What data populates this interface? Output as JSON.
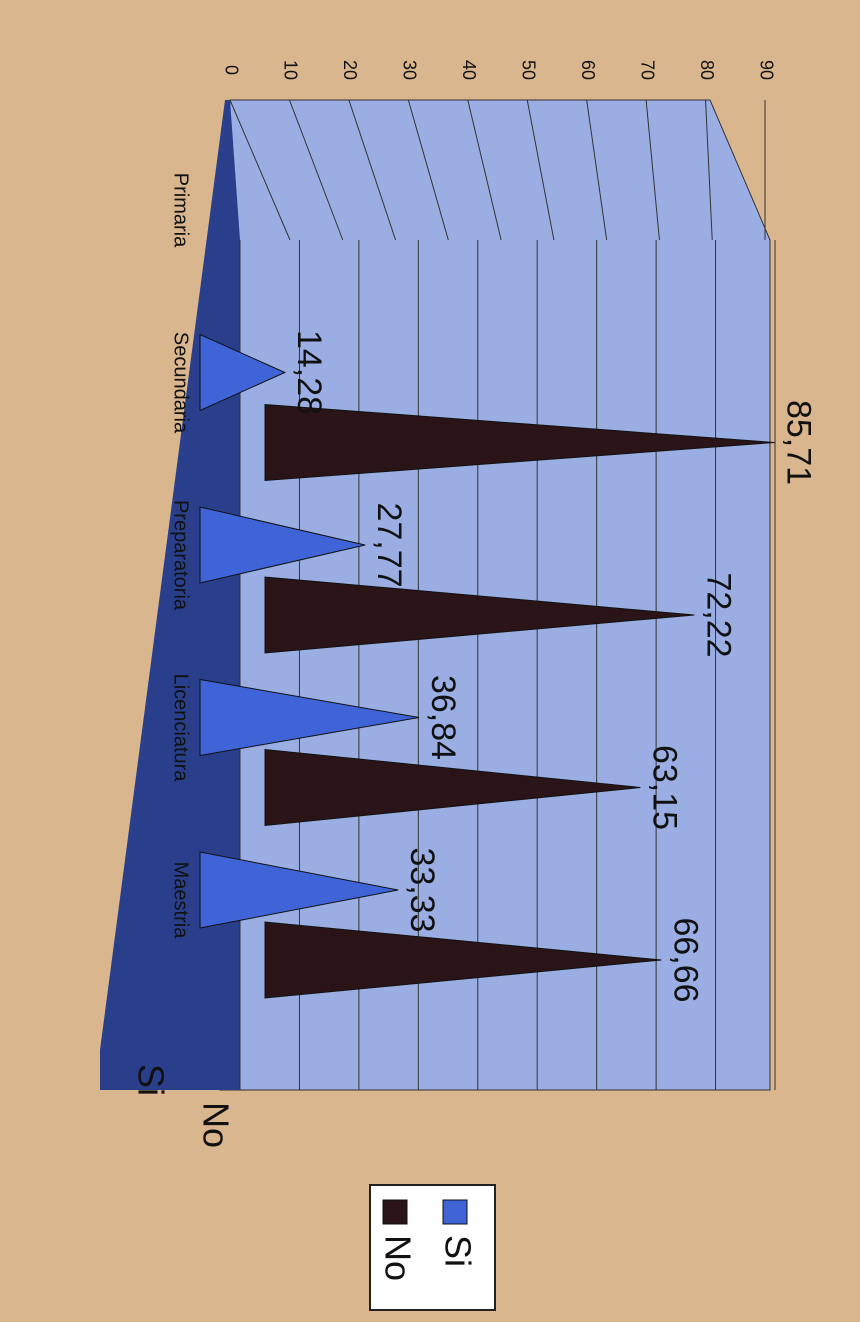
{
  "chart_data": {
    "type": "cone3d",
    "categories": [
      "Primaria",
      "Secundaria",
      "Preparatoria",
      "Licenciatura",
      "Maestria"
    ],
    "series": [
      {
        "name": "Si",
        "color": "#3f64d8",
        "values": [
          null,
          14.28,
          27.77,
          36.84,
          33.33
        ],
        "value_labels": [
          null,
          "14,28",
          "27,77",
          "36,84",
          "33,33"
        ]
      },
      {
        "name": "No",
        "color": "#2a1418",
        "values": [
          null,
          85.71,
          72.22,
          63.15,
          66.66
        ],
        "value_labels": [
          null,
          "85,71",
          "72,22",
          "63,15",
          "66,66"
        ]
      }
    ],
    "ylim": [
      0,
      90
    ],
    "yticks": [
      0,
      10,
      20,
      30,
      40,
      50,
      60,
      70,
      80,
      90
    ],
    "grid": true,
    "legend": "bottom-right"
  }
}
